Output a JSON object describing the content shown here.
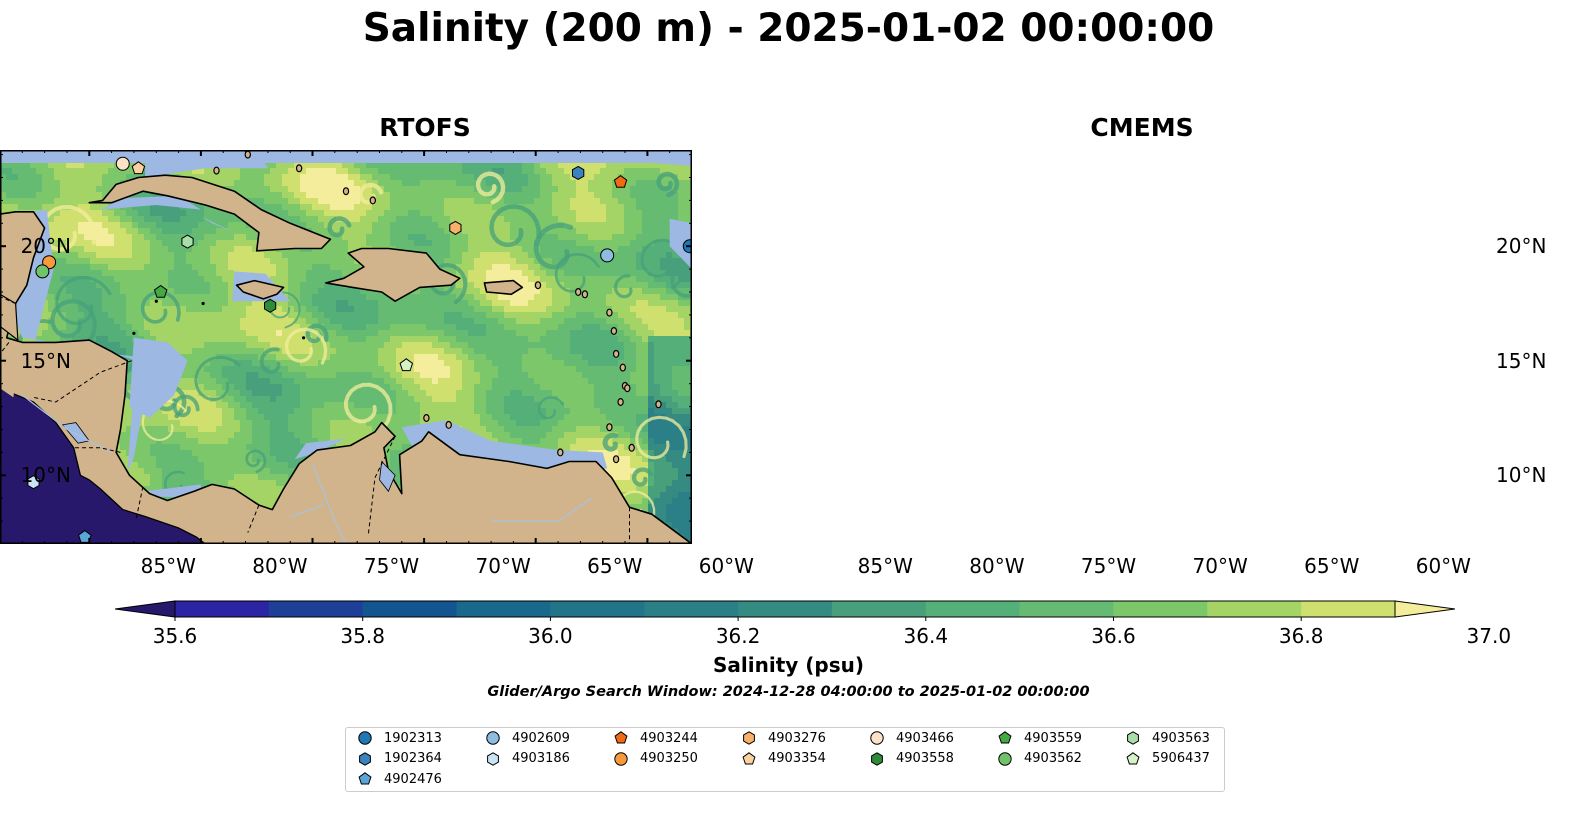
{
  "title": "Salinity (200 m) - 2025-01-02 00:00:00",
  "panels": [
    {
      "title": "RTOFS",
      "theme": "rtofs"
    },
    {
      "title": "CMEMS",
      "theme": "cmems"
    }
  ],
  "axes": {
    "lon_ticks": [
      "85°W",
      "80°W",
      "75°W",
      "70°W",
      "65°W",
      "60°W"
    ],
    "lon_values": [
      -85,
      -80,
      -75,
      -70,
      -65,
      -60
    ],
    "lat_ticks": [
      "20°N",
      "15°N",
      "10°N"
    ],
    "lat_values": [
      20,
      15,
      10
    ],
    "lon_range": [
      -89,
      -58
    ],
    "lat_range": [
      7,
      24.2
    ]
  },
  "colorbar": {
    "label": "Salinity (psu)",
    "tick_labels": [
      "35.6",
      "35.8",
      "36.0",
      "36.2",
      "36.4",
      "36.6",
      "36.8",
      "37.0"
    ],
    "tick_values": [
      35.6,
      35.8,
      36.0,
      36.2,
      36.4,
      36.6,
      36.8,
      37.0
    ],
    "min": 35.6,
    "max": 37.0,
    "step": 0.1,
    "extend": "both",
    "colormap": "haline-like",
    "colors": [
      "#28186b",
      "#2c25a3",
      "#1e3f98",
      "#13558f",
      "#1a688c",
      "#247489",
      "#2b7f86",
      "#358b82",
      "#47a07b",
      "#55af78",
      "#66bb72",
      "#7dc76b",
      "#a5d466",
      "#cfe06e",
      "#f4ee9c"
    ]
  },
  "search_window": "Glider/Argo Search Window: 2024-12-28 04:00:00 to 2025-01-02 00:00:00",
  "map_colors": {
    "land": "#d2b48c",
    "shelf": "#9db8e3",
    "coast": "#000000",
    "rivers": "#a9c2d8"
  },
  "legend": [
    {
      "id": "1902313",
      "marker": "circle",
      "color": "#1f78b4"
    },
    {
      "id": "1902364",
      "marker": "hexagon",
      "color": "#3a82c0"
    },
    {
      "id": "4902476",
      "marker": "pentagon",
      "color": "#5aa6d6"
    },
    {
      "id": "4902609",
      "marker": "circle",
      "color": "#8fbde0"
    },
    {
      "id": "4903186",
      "marker": "hexagon",
      "color": "#c9e5f5"
    },
    {
      "id": "4903244",
      "marker": "pentagon",
      "color": "#ee6b11"
    },
    {
      "id": "4903250",
      "marker": "circle",
      "color": "#f79a3b"
    },
    {
      "id": "4903276",
      "marker": "hexagon",
      "color": "#f9b16a"
    },
    {
      "id": "4903354",
      "marker": "pentagon",
      "color": "#fdd0a0"
    },
    {
      "id": "4903466",
      "marker": "circle",
      "color": "#fee2c6"
    },
    {
      "id": "4903558",
      "marker": "hexagon",
      "color": "#2e8b36"
    },
    {
      "id": "4903559",
      "marker": "pentagon",
      "color": "#44a845"
    },
    {
      "id": "4903562",
      "marker": "circle",
      "color": "#6fc46a"
    },
    {
      "id": "4903563",
      "marker": "hexagon",
      "color": "#a9deaa"
    },
    {
      "id": "5906437",
      "marker": "pentagon",
      "color": "#d6f2c9"
    }
  ],
  "floats": [
    {
      "id": "1902313",
      "lon": -58.1,
      "lat": 20.0
    },
    {
      "id": "1902364",
      "lon": -63.1,
      "lat": 23.2
    },
    {
      "id": "4902476",
      "lon": -85.2,
      "lat": 7.3
    },
    {
      "id": "4902609",
      "lon": -61.8,
      "lat": 19.6
    },
    {
      "id": "4903186",
      "lon": -87.5,
      "lat": 9.7
    },
    {
      "id": "4903244",
      "lon": -61.2,
      "lat": 22.8
    },
    {
      "id": "4903250",
      "lon": -86.8,
      "lat": 19.3
    },
    {
      "id": "4903276",
      "lon": -68.6,
      "lat": 20.8
    },
    {
      "id": "4903354",
      "lon": -82.8,
      "lat": 23.4
    },
    {
      "id": "4903466",
      "lon": -83.5,
      "lat": 23.6
    },
    {
      "id": "4903558",
      "lon": -76.9,
      "lat": 17.4
    },
    {
      "id": "4903559",
      "lon": -81.8,
      "lat": 18.0
    },
    {
      "id": "4903562",
      "lon": -87.1,
      "lat": 18.9
    },
    {
      "id": "4903563",
      "lon": -80.6,
      "lat": 20.2
    },
    {
      "id": "5906437",
      "lon": -70.8,
      "lat": 14.8
    }
  ]
}
